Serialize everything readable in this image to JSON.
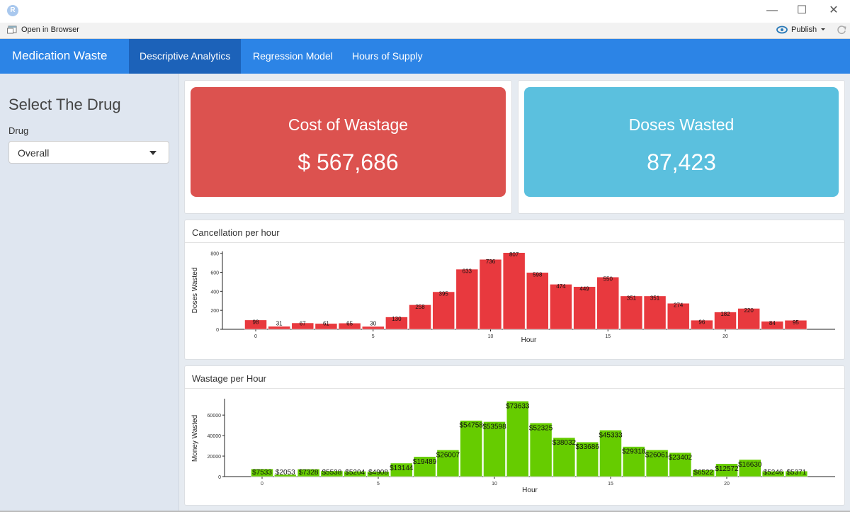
{
  "window": {
    "logo_text": "R",
    "minimize": "—",
    "maximize": "☐",
    "close": "✕"
  },
  "toolbar": {
    "open_in_browser": "Open in Browser",
    "publish": "Publish"
  },
  "navbar": {
    "brand": "Medication Waste",
    "tabs": [
      {
        "label": "Descriptive Analytics"
      },
      {
        "label": "Regression Model"
      },
      {
        "label": "Hours of Supply"
      }
    ]
  },
  "sidebar": {
    "title": "Select The Drug",
    "drug_label": "Drug",
    "drug_value": "Overall"
  },
  "value_boxes": [
    {
      "label": "Cost of Wastage",
      "value": "$ 567,686",
      "color": "#dc524f"
    },
    {
      "label": "Doses Wasted",
      "value": "87,423",
      "color": "#5bc0de"
    }
  ],
  "chart_data": [
    {
      "type": "bar",
      "title": "Cancellation per hour",
      "xlabel": "Hour",
      "ylabel": "Doses Wasted",
      "color": "#e8393e",
      "x": [
        0,
        1,
        2,
        3,
        4,
        5,
        6,
        7,
        8,
        9,
        10,
        11,
        12,
        13,
        14,
        15,
        16,
        17,
        18,
        19,
        20,
        21,
        22,
        23
      ],
      "values": [
        98,
        31,
        67,
        61,
        65,
        30,
        130,
        258,
        395,
        633,
        736,
        807,
        598,
        474,
        449,
        550,
        351,
        351,
        274,
        96,
        182,
        220,
        84,
        95
      ],
      "labels": [
        "98",
        "31",
        "67",
        "61",
        "65",
        "30",
        "130",
        "258",
        "395",
        "633",
        "736",
        "807",
        "598",
        "474",
        "449",
        "550",
        "351",
        "351",
        "274",
        "96",
        "182",
        "220",
        "84",
        "95"
      ],
      "yticks": [
        0,
        200,
        400,
        600,
        800
      ],
      "xticks": [
        0,
        5,
        10,
        15,
        20
      ],
      "ylim": [
        0,
        820
      ]
    },
    {
      "type": "bar",
      "title": "Wastage per Hour",
      "xlabel": "Hour",
      "ylabel": "Money Wasted",
      "color": "#66cc00",
      "x": [
        0,
        1,
        2,
        3,
        4,
        5,
        6,
        7,
        8,
        9,
        10,
        11,
        12,
        13,
        14,
        15,
        16,
        17,
        18,
        19,
        20,
        21,
        22,
        23
      ],
      "values": [
        7533,
        2053,
        7328,
        5538,
        5204,
        4908,
        13144,
        19489,
        26007,
        54758,
        53598,
        73633,
        52325,
        38032,
        33686,
        45333,
        29318,
        26061,
        23402,
        6522,
        12572,
        16630,
        5246,
        5371
      ],
      "labels": [
        "$7533",
        "$2053",
        "$7328",
        "$5538",
        "$5204",
        "$4908",
        "$13144",
        "$19489",
        "$26007",
        "$54758",
        "$53598",
        "$73633",
        "$52325",
        "$38032",
        "$33686",
        "$45333",
        "$29318",
        "$26061",
        "$23402",
        "$6522",
        "$12572",
        "$16630",
        "$5246",
        "$5371"
      ],
      "yticks": [
        0,
        20000,
        40000,
        60000
      ],
      "xticks": [
        0,
        5,
        10,
        15,
        20
      ],
      "ylim": [
        0,
        76000
      ]
    }
  ]
}
